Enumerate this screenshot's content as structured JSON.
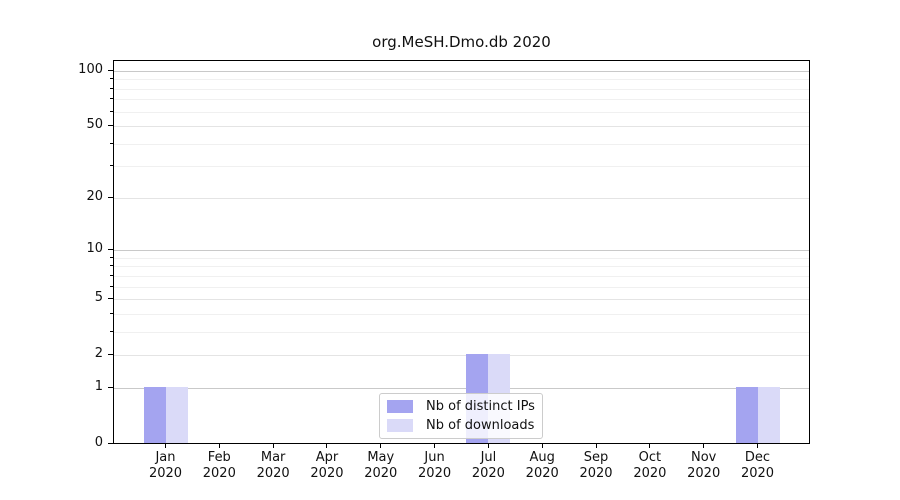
{
  "chart_data": {
    "type": "bar",
    "title": "org.MeSH.Dmo.db 2020",
    "yscale": "log1p",
    "ylim": [
      0,
      115
    ],
    "grid": true,
    "legend_position": "lower center",
    "y_ticks": [
      0,
      1,
      2,
      5,
      10,
      20,
      50,
      100
    ],
    "y_minor_gridlines": [
      3,
      4,
      6,
      7,
      8,
      9,
      30,
      40,
      60,
      70,
      80,
      90
    ],
    "categories": [
      {
        "month": "Jan",
        "year": "2020"
      },
      {
        "month": "Feb",
        "year": "2020"
      },
      {
        "month": "Mar",
        "year": "2020"
      },
      {
        "month": "Apr",
        "year": "2020"
      },
      {
        "month": "May",
        "year": "2020"
      },
      {
        "month": "Jun",
        "year": "2020"
      },
      {
        "month": "Jul",
        "year": "2020"
      },
      {
        "month": "Aug",
        "year": "2020"
      },
      {
        "month": "Sep",
        "year": "2020"
      },
      {
        "month": "Oct",
        "year": "2020"
      },
      {
        "month": "Nov",
        "year": "2020"
      },
      {
        "month": "Dec",
        "year": "2020"
      }
    ],
    "series": [
      {
        "name": "Nb of distinct IPs",
        "color": "#a4a4f0",
        "values": [
          1,
          0,
          0,
          0,
          0,
          0,
          2,
          0,
          0,
          0,
          0,
          1
        ]
      },
      {
        "name": "Nb of downloads",
        "color": "#dadaf8",
        "values": [
          1,
          0,
          0,
          0,
          0,
          0,
          2,
          0,
          0,
          0,
          0,
          1
        ]
      }
    ],
    "colors": {
      "axis": "#000000",
      "grid_decade": "#c9c9c9",
      "grid_sub": "#e4e4e4",
      "grid_minor": "#f0f0f0",
      "background": "#ffffff"
    }
  }
}
